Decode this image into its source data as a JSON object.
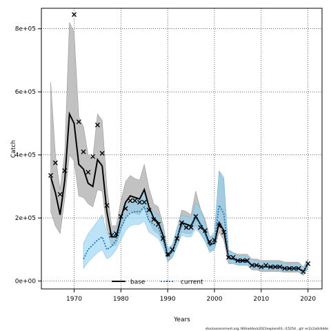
{
  "chart_data": {
    "type": "line",
    "xlabel": "Years",
    "ylabel": "Catch",
    "xlim": [
      1963,
      2023
    ],
    "ylim": [
      -25000,
      865000
    ],
    "x_ticks": [
      1970,
      1980,
      1990,
      2000,
      2010,
      2020
    ],
    "y_ticks": [
      0,
      200000,
      400000,
      600000,
      800000
    ],
    "y_tick_labels": [
      "0e+00",
      "2e+05",
      "4e+05",
      "6e+05",
      "8e+05"
    ],
    "grid": true,
    "legend_position": "bottom-center",
    "series": [
      {
        "name": "base",
        "color": "#000000",
        "band_color": "#bbbbbb",
        "line_style": "solid",
        "x": [
          1965,
          1966,
          1967,
          1968,
          1969,
          1970,
          1971,
          1972,
          1973,
          1974,
          1975,
          1976,
          1977,
          1978,
          1979,
          1980,
          1981,
          1982,
          1983,
          1984,
          1985,
          1986,
          1987,
          1988,
          1989,
          1990,
          1991,
          1992,
          1993,
          1994,
          1995,
          1996,
          1997,
          1998,
          1999,
          2000,
          2001,
          2002,
          2003,
          2004,
          2005,
          2006,
          2007,
          2008,
          2009,
          2010,
          2011,
          2012,
          2013,
          2014,
          2015,
          2016,
          2017,
          2018,
          2019,
          2020
        ],
        "estimate": [
          330000,
          280000,
          210000,
          320000,
          530000,
          500000,
          370000,
          355000,
          310000,
          300000,
          385000,
          365000,
          220000,
          140000,
          140000,
          200000,
          250000,
          270000,
          265000,
          260000,
          290000,
          235000,
          200000,
          185000,
          145000,
          80000,
          95000,
          135000,
          185000,
          180000,
          175000,
          205000,
          180000,
          155000,
          115000,
          120000,
          185000,
          160000,
          75000,
          70000,
          65000,
          65000,
          65000,
          50000,
          50000,
          45000,
          45000,
          45000,
          45000,
          45000,
          40000,
          40000,
          40000,
          40000,
          30000,
          55000
        ],
        "lower": [
          220000,
          175000,
          150000,
          260000,
          400000,
          380000,
          270000,
          265000,
          245000,
          235000,
          290000,
          285000,
          165000,
          110000,
          115000,
          160000,
          200000,
          220000,
          215000,
          210000,
          235000,
          190000,
          160000,
          150000,
          120000,
          60000,
          75000,
          110000,
          155000,
          150000,
          150000,
          175000,
          150000,
          125000,
          95000,
          100000,
          155000,
          130000,
          55000,
          55000,
          50000,
          50000,
          50000,
          35000,
          35000,
          30000,
          30000,
          30000,
          30000,
          30000,
          28000,
          28000,
          28000,
          28000,
          18000,
          40000
        ],
        "upper": [
          630000,
          400000,
          290000,
          410000,
          820000,
          790000,
          520000,
          490000,
          400000,
          390000,
          530000,
          510000,
          300000,
          175000,
          175000,
          255000,
          315000,
          335000,
          325000,
          320000,
          370000,
          295000,
          245000,
          235000,
          180000,
          100000,
          115000,
          165000,
          225000,
          220000,
          210000,
          285000,
          230000,
          195000,
          140000,
          145000,
          350000,
          320000,
          100000,
          90000,
          85000,
          85000,
          85000,
          70000,
          70000,
          65000,
          65000,
          65000,
          65000,
          65000,
          60000,
          60000,
          60000,
          60000,
          45000,
          70000
        ]
      },
      {
        "name": "current",
        "color": "#1f78b4",
        "band_color": "#8fd0f2",
        "line_style": "dotted",
        "x": [
          1972,
          1973,
          1974,
          1975,
          1976,
          1977,
          1978,
          1979,
          1980,
          1981,
          1982,
          1983,
          1984,
          1985,
          1986,
          1987,
          1988,
          1989,
          1990,
          1991,
          1992,
          1993,
          1994,
          1995,
          1996,
          1997,
          1998,
          1999,
          2000,
          2001,
          2002,
          2003,
          2004,
          2005,
          2006,
          2007,
          2008,
          2009,
          2010,
          2011,
          2012,
          2013,
          2014,
          2015,
          2016,
          2017,
          2018,
          2019,
          2020
        ],
        "estimate": [
          70000,
          100000,
          115000,
          130000,
          140000,
          100000,
          110000,
          130000,
          170000,
          200000,
          215000,
          220000,
          220000,
          235000,
          190000,
          180000,
          170000,
          130000,
          85000,
          95000,
          140000,
          175000,
          170000,
          170000,
          200000,
          180000,
          150000,
          110000,
          125000,
          240000,
          215000,
          75000,
          70000,
          60000,
          60000,
          60000,
          50000,
          50000,
          45000,
          45000,
          45000,
          45000,
          45000,
          40000,
          40000,
          40000,
          40000,
          30000,
          55000
        ],
        "lower": [
          40000,
          60000,
          75000,
          90000,
          100000,
          70000,
          80000,
          100000,
          130000,
          160000,
          175000,
          180000,
          180000,
          190000,
          155000,
          145000,
          135000,
          105000,
          65000,
          75000,
          110000,
          145000,
          140000,
          140000,
          165000,
          150000,
          125000,
          90000,
          100000,
          190000,
          170000,
          60000,
          55000,
          50000,
          50000,
          50000,
          40000,
          40000,
          35000,
          35000,
          35000,
          35000,
          35000,
          30000,
          30000,
          30000,
          30000,
          20000,
          45000
        ],
        "upper": [
          120000,
          150000,
          170000,
          190000,
          210000,
          150000,
          150000,
          165000,
          210000,
          240000,
          255000,
          265000,
          265000,
          280000,
          235000,
          220000,
          210000,
          165000,
          105000,
          115000,
          170000,
          210000,
          205000,
          200000,
          250000,
          230000,
          185000,
          140000,
          155000,
          350000,
          330000,
          95000,
          90000,
          80000,
          80000,
          80000,
          65000,
          65000,
          60000,
          60000,
          60000,
          60000,
          60000,
          55000,
          55000,
          55000,
          55000,
          45000,
          70000
        ]
      }
    ],
    "observed": {
      "marker": "x",
      "x": [
        1965,
        1966,
        1967,
        1968,
        1970,
        1971,
        1972,
        1973,
        1974,
        1975,
        1976,
        1977,
        1978,
        1979,
        1980,
        1981,
        1982,
        1983,
        1984,
        1985,
        1986,
        1987,
        1988,
        1989,
        1990,
        1991,
        1992,
        1993,
        1994,
        1995,
        1996,
        1997,
        1998,
        1999,
        2000,
        2001,
        2002,
        2003,
        2004,
        2005,
        2006,
        2007,
        2008,
        2009,
        2010,
        2011,
        2012,
        2013,
        2014,
        2015,
        2016,
        2017,
        2018,
        2019,
        2020
      ],
      "y": [
        335000,
        375000,
        275000,
        350000,
        845000,
        505000,
        410000,
        345000,
        395000,
        495000,
        405000,
        240000,
        145000,
        150000,
        205000,
        230000,
        255000,
        255000,
        250000,
        250000,
        225000,
        195000,
        180000,
        135000,
        85000,
        100000,
        135000,
        185000,
        170000,
        170000,
        205000,
        170000,
        160000,
        125000,
        130000,
        175000,
        155000,
        75000,
        75000,
        65000,
        65000,
        65000,
        50000,
        50000,
        45000,
        50000,
        45000,
        45000,
        45000,
        40000,
        40000,
        40000,
        40000,
        30000,
        55000
      ]
    }
  },
  "legend": {
    "base_label": "base",
    "current_label": "current"
  },
  "footnote": "stockassessment.org, NShaddock2021explore03, r15254 , git: ec2c2a0c6dde"
}
